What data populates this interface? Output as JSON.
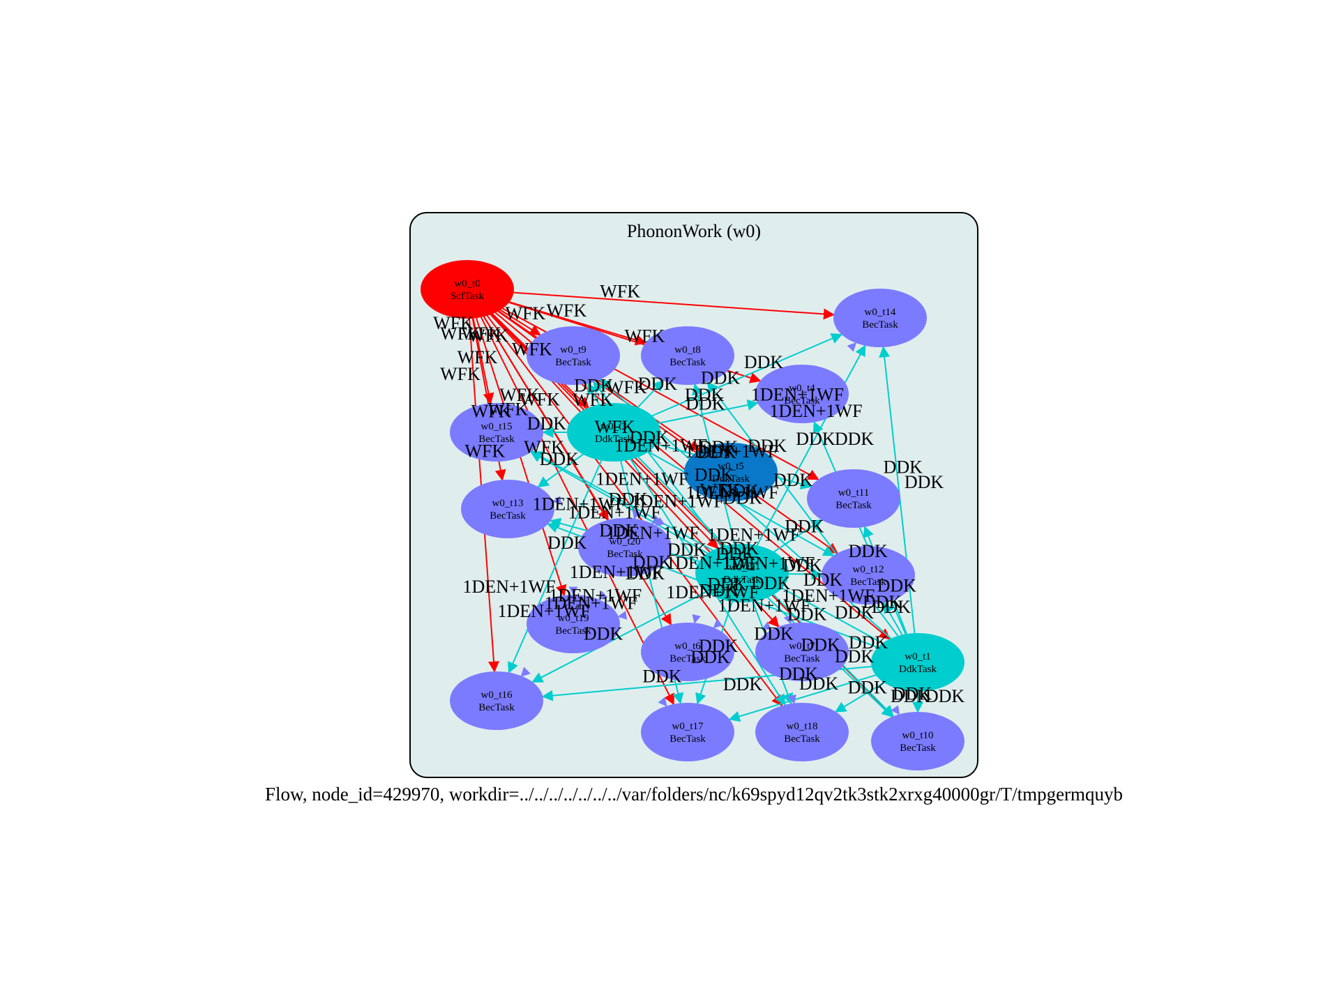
{
  "cluster": {
    "title": "PhononWork (w0)",
    "fill": "#e0eded",
    "stroke": "#000000"
  },
  "caption": "Flow, node_id=429970, workdir=../../../../../../../var/folders/nc/k69spyd12qv2tk3stk2xrxg40000gr/T/tmpgermquyb",
  "colors": {
    "ScfTask": "#ff0000",
    "BecTask": "#7b7bff",
    "DdkTask": "#00cdcd",
    "DdkTask_dark": "#0a78c8",
    "edge_wfk": "#ff0000",
    "edge_ddk": "#00cdcd",
    "edge_1den": "#7b7bff"
  },
  "nodes": [
    {
      "id": "w0_t0",
      "name": "w0_t0",
      "type": "ScfTask",
      "color": "ScfTask"
    },
    {
      "id": "w0_t14",
      "name": "w0_t14",
      "type": "BecTask",
      "color": "BecTask"
    },
    {
      "id": "w0_t9",
      "name": "w0_t9",
      "type": "BecTask",
      "color": "BecTask"
    },
    {
      "id": "w0_t8",
      "name": "w0_t8",
      "type": "BecTask",
      "color": "BecTask"
    },
    {
      "id": "w0_t4",
      "name": "w0_t4",
      "type": "BecTask",
      "color": "BecTask"
    },
    {
      "id": "w0_t15",
      "name": "w0_t15",
      "type": "BecTask",
      "color": "BecTask"
    },
    {
      "id": "w0_t3",
      "name": "w0_t3",
      "type": "DdkTask",
      "color": "DdkTask"
    },
    {
      "id": "w0_t5",
      "name": "w0_t5",
      "type": "DdkTask",
      "color": "DdkTask_dark"
    },
    {
      "id": "w0_t11",
      "name": "w0_t11",
      "type": "BecTask",
      "color": "BecTask"
    },
    {
      "id": "w0_t13",
      "name": "w0_t13",
      "type": "BecTask",
      "color": "BecTask"
    },
    {
      "id": "w0_t20",
      "name": "w0_t20",
      "type": "BecTask",
      "color": "BecTask"
    },
    {
      "id": "w0_t2",
      "name": "w0_t2",
      "type": "DdkTask",
      "color": "DdkTask"
    },
    {
      "id": "w0_t12",
      "name": "w0_t12",
      "type": "BecTask",
      "color": "BecTask"
    },
    {
      "id": "w0_t19",
      "name": "w0_t19",
      "type": "BecTask",
      "color": "BecTask"
    },
    {
      "id": "w0_t6",
      "name": "w0_t6",
      "type": "BecTask",
      "color": "BecTask"
    },
    {
      "id": "w0_t7",
      "name": "w0_t7",
      "type": "BecTask",
      "color": "BecTask"
    },
    {
      "id": "w0_t1",
      "name": "w0_t1",
      "type": "DdkTask",
      "color": "DdkTask"
    },
    {
      "id": "w0_t16",
      "name": "w0_t16",
      "type": "BecTask",
      "color": "BecTask"
    },
    {
      "id": "w0_t17",
      "name": "w0_t17",
      "type": "BecTask",
      "color": "BecTask"
    },
    {
      "id": "w0_t18",
      "name": "w0_t18",
      "type": "BecTask",
      "color": "BecTask"
    },
    {
      "id": "w0_t10",
      "name": "w0_t10",
      "type": "BecTask",
      "color": "BecTask"
    }
  ],
  "edges": [
    {
      "from": "w0_t0",
      "to": "w0_t14",
      "label": "WFK",
      "kind": "wfk"
    },
    {
      "from": "w0_t0",
      "to": "w0_t8",
      "label": "WFK",
      "kind": "wfk"
    },
    {
      "from": "w0_t0",
      "to": "w0_t9",
      "label": "WFK",
      "kind": "wfk"
    },
    {
      "from": "w0_t0",
      "to": "w0_t15",
      "label": "WFK",
      "kind": "wfk"
    },
    {
      "from": "w0_t0",
      "to": "w0_t13",
      "label": "WFK",
      "kind": "wfk"
    },
    {
      "from": "w0_t0",
      "to": "w0_t16",
      "label": "WFK",
      "kind": "wfk"
    },
    {
      "from": "w0_t0",
      "to": "w0_t3",
      "label": "WFK",
      "kind": "wfk"
    },
    {
      "from": "w0_t0",
      "to": "w0_t4",
      "label": "WFK",
      "kind": "wfk"
    },
    {
      "from": "w0_t0",
      "to": "w0_t5",
      "label": "WFK",
      "kind": "wfk"
    },
    {
      "from": "w0_t0",
      "to": "w0_t11",
      "label": "",
      "kind": "wfk"
    },
    {
      "from": "w0_t0",
      "to": "w0_t20",
      "label": "WFK",
      "kind": "wfk"
    },
    {
      "from": "w0_t0",
      "to": "w0_t2",
      "label": "WFK",
      "kind": "wfk"
    },
    {
      "from": "w0_t0",
      "to": "w0_t12",
      "label": "",
      "kind": "wfk"
    },
    {
      "from": "w0_t0",
      "to": "w0_t19",
      "label": "WFK",
      "kind": "wfk"
    },
    {
      "from": "w0_t0",
      "to": "w0_t6",
      "label": "",
      "kind": "wfk"
    },
    {
      "from": "w0_t0",
      "to": "w0_t7",
      "label": "",
      "kind": "wfk"
    },
    {
      "from": "w0_t0",
      "to": "w0_t1",
      "label": "WFK",
      "kind": "wfk"
    },
    {
      "from": "w0_t0",
      "to": "w0_t17",
      "label": "",
      "kind": "wfk"
    },
    {
      "from": "w0_t0",
      "to": "w0_t18",
      "label": "",
      "kind": "wfk"
    },
    {
      "from": "w0_t0",
      "to": "w0_t10",
      "label": "",
      "kind": "wfk"
    },
    {
      "from": "w0_t1",
      "to": "w0_t14",
      "label": "DDK",
      "kind": "ddk"
    },
    {
      "from": "w0_t1",
      "to": "w0_t16",
      "label": "DDK",
      "kind": "ddk"
    },
    {
      "from": "w0_t1",
      "to": "w0_t17",
      "label": "DDK",
      "kind": "ddk"
    },
    {
      "from": "w0_t1",
      "to": "w0_t18",
      "label": "DDK",
      "kind": "ddk"
    },
    {
      "from": "w0_t1",
      "to": "w0_t10",
      "label": "DDK",
      "kind": "ddk"
    },
    {
      "from": "w0_t1",
      "to": "w0_t12",
      "label": "DDK",
      "kind": "ddk"
    },
    {
      "from": "w0_t1",
      "to": "w0_t11",
      "label": "DDK",
      "kind": "ddk"
    },
    {
      "from": "w0_t1",
      "to": "w0_t13",
      "label": "DDK",
      "kind": "ddk"
    },
    {
      "from": "w0_t1",
      "to": "w0_t9",
      "label": "DDK",
      "kind": "ddk"
    },
    {
      "from": "w0_t1",
      "to": "w0_t8",
      "label": "DDK",
      "kind": "ddk"
    },
    {
      "from": "w0_t1",
      "to": "w0_t4",
      "label": "DDK",
      "kind": "ddk"
    },
    {
      "from": "w0_t1",
      "to": "w0_t15",
      "label": "DDK",
      "kind": "ddk"
    },
    {
      "from": "w0_t2",
      "to": "w0_t14",
      "label": "DDK",
      "kind": "ddk"
    },
    {
      "from": "w0_t2",
      "to": "w0_t16",
      "label": "DDK",
      "kind": "ddk"
    },
    {
      "from": "w0_t2",
      "to": "w0_t17",
      "label": "DDK",
      "kind": "ddk"
    },
    {
      "from": "w0_t2",
      "to": "w0_t18",
      "label": "DDK",
      "kind": "ddk"
    },
    {
      "from": "w0_t2",
      "to": "w0_t10",
      "label": "DDK",
      "kind": "ddk"
    },
    {
      "from": "w0_t2",
      "to": "w0_t13",
      "label": "DDK",
      "kind": "ddk"
    },
    {
      "from": "w0_t2",
      "to": "w0_t9",
      "label": "DDK",
      "kind": "ddk"
    },
    {
      "from": "w0_t2",
      "to": "w0_t8",
      "label": "DDK",
      "kind": "ddk"
    },
    {
      "from": "w0_t2",
      "to": "w0_t15",
      "label": "DDK",
      "kind": "ddk"
    },
    {
      "from": "w0_t2",
      "to": "w0_t11",
      "label": "DDK",
      "kind": "ddk"
    },
    {
      "from": "w0_t2",
      "to": "w0_t12",
      "label": "DDK",
      "kind": "ddk"
    },
    {
      "from": "w0_t3",
      "to": "w0_t14",
      "label": "DDK",
      "kind": "ddk"
    },
    {
      "from": "w0_t3",
      "to": "w0_t16",
      "label": "DDK",
      "kind": "ddk"
    },
    {
      "from": "w0_t3",
      "to": "w0_t17",
      "label": "DDK",
      "kind": "ddk"
    },
    {
      "from": "w0_t3",
      "to": "w0_t18",
      "label": "DDK",
      "kind": "ddk"
    },
    {
      "from": "w0_t3",
      "to": "w0_t10",
      "label": "DDK",
      "kind": "ddk"
    },
    {
      "from": "w0_t3",
      "to": "w0_t13",
      "label": "DDK",
      "kind": "ddk"
    },
    {
      "from": "w0_t3",
      "to": "w0_t9",
      "label": "DDK",
      "kind": "ddk"
    },
    {
      "from": "w0_t3",
      "to": "w0_t8",
      "label": "DDK",
      "kind": "ddk"
    },
    {
      "from": "w0_t3",
      "to": "w0_t15",
      "label": "DDK",
      "kind": "ddk"
    },
    {
      "from": "w0_t3",
      "to": "w0_t11",
      "label": "DDK",
      "kind": "ddk"
    },
    {
      "from": "w0_t3",
      "to": "w0_t12",
      "label": "DDK",
      "kind": "ddk"
    },
    {
      "from": "w0_t3",
      "to": "w0_t4",
      "label": "DDK",
      "kind": "ddk"
    },
    {
      "from": "w0_t5",
      "to": "w0_t16",
      "label": "1DEN+1WF",
      "kind": "den"
    },
    {
      "from": "w0_t5",
      "to": "w0_t13",
      "label": "1DEN+1WF",
      "kind": "den"
    },
    {
      "from": "w0_t5",
      "to": "w0_t19",
      "label": "1DEN+1WF",
      "kind": "den"
    },
    {
      "from": "w0_t5",
      "to": "w0_t20",
      "label": "1DEN+1WF",
      "kind": "den"
    },
    {
      "from": "w0_t5",
      "to": "w0_t6",
      "label": "1DEN+1WF",
      "kind": "den"
    },
    {
      "from": "w0_t5",
      "to": "w0_t7",
      "label": "1DEN+1WF",
      "kind": "den"
    },
    {
      "from": "w0_t5",
      "to": "w0_t14",
      "label": "1DEN+1WF",
      "kind": "den"
    },
    {
      "from": "w0_t5",
      "to": "w0_t10",
      "label": "1DEN+1WF",
      "kind": "den"
    },
    {
      "from": "w0_t5",
      "to": "w0_t18",
      "label": "1DEN+1WF",
      "kind": "den"
    },
    {
      "from": "w0_t4",
      "to": "w0_t16",
      "label": "1DEN+1WF",
      "kind": "den"
    },
    {
      "from": "w0_t4",
      "to": "w0_t20",
      "label": "1DEN+1WF",
      "kind": "den"
    },
    {
      "from": "w0_t11",
      "to": "w0_t6",
      "label": "1DEN+1WF",
      "kind": "den"
    },
    {
      "from": "w0_t12",
      "to": "w0_t19",
      "label": "1DEN+1WF",
      "kind": "den"
    },
    {
      "from": "w0_t9",
      "to": "w0_t19",
      "label": "1DEN+1WF",
      "kind": "den"
    },
    {
      "from": "w0_t15",
      "to": "w0_t7",
      "label": "1DEN+1WF",
      "kind": "den"
    },
    {
      "from": "w0_t13",
      "to": "w0_t17",
      "label": "1DEN+1WF",
      "kind": "den"
    },
    {
      "from": "w0_t8",
      "to": "w0_t20",
      "label": "1DEN+1WF",
      "kind": "den"
    }
  ],
  "extra_labels": [
    "WFK",
    "WFK",
    "WFK",
    "WFK",
    "WFK",
    "WFK",
    "WFK",
    "WFK",
    "DDK",
    "DDK",
    "DDK",
    "DDK",
    "DDK",
    "DDK",
    "DDK",
    "DDK",
    "DDK",
    "DDK",
    "DDK",
    "DDK",
    "DDK",
    "DDK",
    "DDK",
    "DDK",
    "DDK",
    "DDK",
    "DDK",
    "DDK",
    "1DEN+1WF",
    "1DEN+1WF",
    "1DEN+1WF",
    "1DEN+1WF"
  ]
}
